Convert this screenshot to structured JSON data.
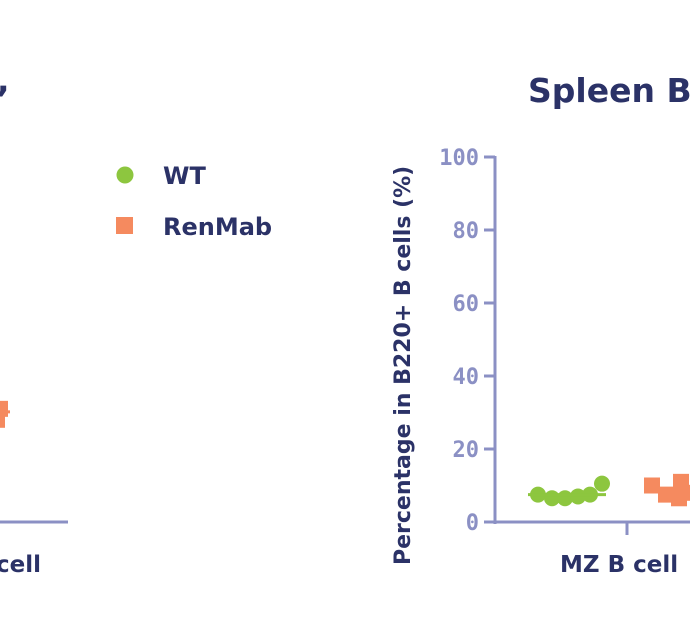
{
  "colors": {
    "axis": "#8b90c4",
    "text_dark": "#2b3267",
    "tick": "#8b90c4",
    "wt": "#8dc63f",
    "renmab": "#f58a5f"
  },
  "legend": [
    {
      "label": "WT",
      "marker": "circle",
      "color": "#8dc63f"
    },
    {
      "label": "RenMab",
      "marker": "square",
      "color": "#f58a5f"
    }
  ],
  "left_fragment": {
    "category_label_fragment": "cell",
    "title_fragment": ",",
    "renmab_points_visible": [
      28,
      31
    ]
  },
  "chart_data": {
    "type": "scatter",
    "title": "Spleen B",
    "ylabel": "Percentage in B220+ B cells (%)",
    "ylim": [
      0,
      100
    ],
    "yticks": [
      "0",
      "20",
      "40",
      "60",
      "80",
      "100"
    ],
    "categories": [
      "MZ B cell"
    ],
    "series": [
      {
        "name": "WT",
        "marker": "circle",
        "values": [
          7.5,
          6.5,
          6.5,
          7,
          7.5,
          10.5
        ],
        "mean": 7.5
      },
      {
        "name": "RenMab",
        "marker": "square",
        "values": [
          10,
          7.5,
          6.5,
          11,
          8,
          7
        ],
        "mean": 8.5
      }
    ]
  }
}
